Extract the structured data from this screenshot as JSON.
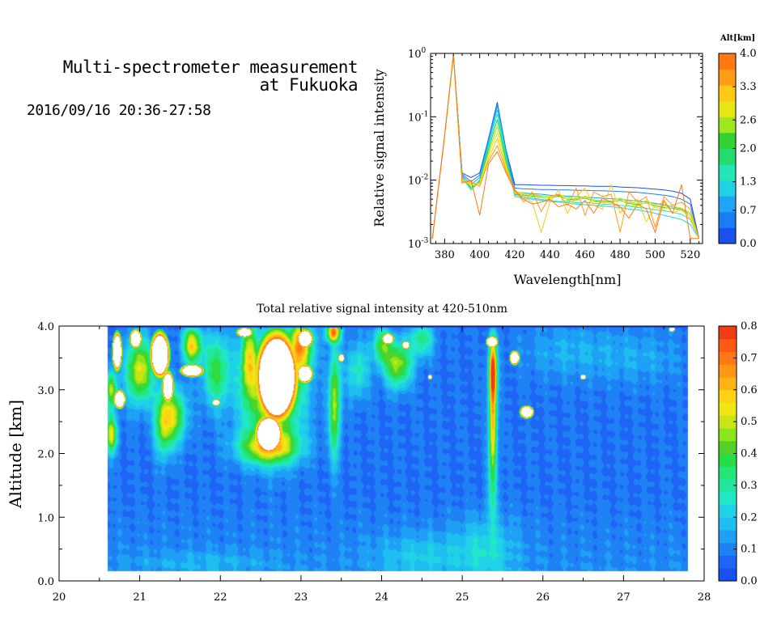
{
  "header": {
    "title_line1": "Multi-spectrometer measurement",
    "title_line2": "at Fukuoka",
    "datetime": "2016/09/16 20:36-27:58"
  },
  "chart_data": [
    {
      "type": "line",
      "xlabel": "Wavelength[nm]",
      "ylabel": "Relative signal intensity",
      "xlim": [
        372,
        527
      ],
      "ylim": [
        0.001,
        1
      ],
      "yscale": "log",
      "x_ticks": [
        "380",
        "400",
        "420",
        "440",
        "460",
        "480",
        "500",
        "520"
      ],
      "y_tick_base": "10",
      "y_tick_exponents": [
        "-3",
        "-2",
        "-1",
        "0"
      ],
      "colorbar": {
        "title": "Alt[km]",
        "ticks": [
          "0.0",
          "0.7",
          "1.3",
          "2.0",
          "2.6",
          "3.3",
          "4.0"
        ],
        "range": [
          0,
          4
        ],
        "colors": [
          "#1a4ff0",
          "#1a7df5",
          "#1ea5f5",
          "#20d2e6",
          "#22e6b4",
          "#22dc6e",
          "#32d232",
          "#a0e61e",
          "#e6e614",
          "#ffc814",
          "#ff9b14",
          "#ff7814"
        ]
      },
      "x": [
        373,
        380,
        385,
        390,
        395,
        400,
        405,
        410,
        415,
        420,
        425,
        430,
        435,
        440,
        445,
        450,
        455,
        460,
        465,
        470,
        475,
        480,
        485,
        490,
        495,
        500,
        505,
        510,
        515,
        520,
        525
      ],
      "series": [
        {
          "color": "#1a4ff0",
          "values": [
            0.0012,
            0.05,
            0.95,
            0.013,
            0.011,
            0.013,
            0.045,
            0.17,
            0.03,
            0.0085,
            0.0085,
            0.0084,
            0.0083,
            0.0083,
            0.0082,
            0.0082,
            0.0081,
            0.0081,
            0.008,
            0.008,
            0.008,
            0.0078,
            0.0077,
            0.0076,
            0.0074,
            0.0072,
            0.007,
            0.0067,
            0.0062,
            0.005,
            0.0012
          ]
        },
        {
          "color": "#1a7df5",
          "values": [
            0.0012,
            0.05,
            0.95,
            0.0125,
            0.0095,
            0.012,
            0.043,
            0.16,
            0.029,
            0.0075,
            0.0073,
            0.0072,
            0.0071,
            0.0071,
            0.007,
            0.007,
            0.0069,
            0.0069,
            0.0068,
            0.0068,
            0.0067,
            0.0066,
            0.0065,
            0.0064,
            0.0062,
            0.006,
            0.0058,
            0.0055,
            0.005,
            0.0042,
            0.0012
          ]
        },
        {
          "color": "#1ea5f5",
          "values": [
            0.0012,
            0.05,
            0.95,
            0.012,
            0.0085,
            0.011,
            0.04,
            0.15,
            0.027,
            0.0065,
            0.0063,
            0.0061,
            0.006,
            0.0058,
            0.0057,
            0.0056,
            0.0055,
            0.0054,
            0.0053,
            0.0052,
            0.0051,
            0.005,
            0.0048,
            0.0047,
            0.0045,
            0.0043,
            0.0041,
            0.0038,
            0.0035,
            0.003,
            0.0012
          ]
        },
        {
          "color": "#20d2e6",
          "values": [
            0.0012,
            0.05,
            0.95,
            0.0115,
            0.0075,
            0.01,
            0.037,
            0.13,
            0.025,
            0.0055,
            0.0052,
            0.005,
            0.0048,
            0.0046,
            0.0045,
            0.0044,
            0.0042,
            0.0041,
            0.004,
            0.0039,
            0.0038,
            0.0037,
            0.0035,
            0.0034,
            0.0032,
            0.003,
            0.0028,
            0.0026,
            0.0024,
            0.002,
            0.0012
          ]
        },
        {
          "color": "#22e6b4",
          "values": [
            0.0012,
            0.05,
            0.95,
            0.011,
            0.007,
            0.0095,
            0.033,
            0.11,
            0.022,
            0.0058,
            0.0055,
            0.0052,
            0.005,
            0.0048,
            0.0046,
            0.0047,
            0.0044,
            0.0045,
            0.0043,
            0.0042,
            0.0041,
            0.004,
            0.0039,
            0.0037,
            0.0036,
            0.0034,
            0.0033,
            0.0031,
            0.0029,
            0.0024,
            0.0012
          ]
        },
        {
          "color": "#32d232",
          "values": [
            0.0012,
            0.05,
            0.95,
            0.011,
            0.0075,
            0.0095,
            0.03,
            0.09,
            0.02,
            0.006,
            0.0058,
            0.0056,
            0.0054,
            0.0052,
            0.0056,
            0.005,
            0.0049,
            0.0052,
            0.0047,
            0.0046,
            0.0045,
            0.0048,
            0.0043,
            0.0041,
            0.0044,
            0.0039,
            0.0037,
            0.0036,
            0.0034,
            0.0028,
            0.0012
          ]
        },
        {
          "color": "#a0e61e",
          "values": [
            0.0012,
            0.05,
            0.95,
            0.0105,
            0.008,
            0.009,
            0.027,
            0.07,
            0.018,
            0.0062,
            0.006,
            0.0059,
            0.0057,
            0.0055,
            0.006,
            0.0053,
            0.0051,
            0.0056,
            0.0049,
            0.0048,
            0.0047,
            0.0052,
            0.0045,
            0.0043,
            0.0047,
            0.0041,
            0.0039,
            0.0038,
            0.0036,
            0.003,
            0.0012
          ]
        },
        {
          "color": "#e6e614",
          "values": [
            0.0012,
            0.05,
            0.95,
            0.0105,
            0.0085,
            0.009,
            0.025,
            0.055,
            0.016,
            0.0065,
            0.0062,
            0.0058,
            0.0055,
            0.0052,
            0.006,
            0.0049,
            0.0047,
            0.0055,
            0.0046,
            0.0044,
            0.0043,
            0.005,
            0.004,
            0.0039,
            0.0045,
            0.0037,
            0.0035,
            0.0041,
            0.0033,
            0.0028,
            0.0012
          ]
        },
        {
          "color": "#ffc814",
          "values": [
            0.0012,
            0.05,
            0.95,
            0.01,
            0.009,
            0.0085,
            0.022,
            0.045,
            0.015,
            0.007,
            0.0055,
            0.0045,
            0.0015,
            0.0045,
            0.007,
            0.003,
            0.0055,
            0.0075,
            0.004,
            0.0035,
            0.0085,
            0.003,
            0.0045,
            0.005,
            0.0022,
            0.004,
            0.0045,
            0.003,
            0.0035,
            0.0025,
            0.0012
          ]
        },
        {
          "color": "#ff9b14",
          "values": [
            0.0012,
            0.05,
            0.95,
            0.0095,
            0.0095,
            0.008,
            0.02,
            0.035,
            0.014,
            0.0072,
            0.0045,
            0.0065,
            0.0032,
            0.0055,
            0.006,
            0.004,
            0.0075,
            0.0028,
            0.0065,
            0.0055,
            0.006,
            0.0015,
            0.0065,
            0.0045,
            0.0055,
            0.0018,
            0.0055,
            0.004,
            0.0045,
            0.0035,
            0.0012
          ]
        },
        {
          "color": "#ff7814",
          "values": [
            0.0012,
            0.05,
            0.95,
            0.009,
            0.01,
            0.0028,
            0.018,
            0.028,
            0.013,
            0.0068,
            0.005,
            0.0042,
            0.0045,
            0.005,
            0.0038,
            0.0042,
            0.0035,
            0.0048,
            0.003,
            0.0052,
            0.0045,
            0.0038,
            0.0025,
            0.0042,
            0.0035,
            0.0015,
            0.0048,
            0.003,
            0.0085,
            0.0012,
            0.0012
          ]
        }
      ]
    },
    {
      "type": "heatmap",
      "title": "Total relative signal intensity at 420-510nm",
      "ylabel": "Altitude [km]",
      "xlim": [
        20,
        28
      ],
      "ylim": [
        0,
        4
      ],
      "data_x_range": [
        20.6,
        27.8
      ],
      "data_y_range": [
        0.15,
        4.0
      ],
      "x_ticks": [
        "20",
        "21",
        "22",
        "23",
        "24",
        "25",
        "26",
        "27",
        "28"
      ],
      "y_ticks": [
        "0.0",
        "1.0",
        "2.0",
        "3.0",
        "4.0"
      ],
      "colorbar": {
        "ticks": [
          "0.0",
          "0.1",
          "0.2",
          "0.3",
          "0.4",
          "0.5",
          "0.6",
          "0.7",
          "0.8"
        ],
        "range": [
          0,
          0.8
        ],
        "colors": [
          "#1a4ff0",
          "#1e64f5",
          "#1e82f5",
          "#1ea0f5",
          "#1ebef0",
          "#20d2e6",
          "#22e6c8",
          "#22e6a0",
          "#22e678",
          "#28dc46",
          "#50d228",
          "#8ce61e",
          "#c8e614",
          "#f0e614",
          "#ffd214",
          "#ffb414",
          "#ff9614",
          "#ff7814",
          "#ff5a14",
          "#f03c14"
        ]
      },
      "background_level": 0.08,
      "features": [
        {
          "x": 20.65,
          "y": 2.3,
          "sx": 0.05,
          "sy": 0.2,
          "amp": 0.45
        },
        {
          "x": 20.65,
          "y": 3.0,
          "sx": 0.05,
          "sy": 0.2,
          "amp": 0.4
        },
        {
          "x": 21.0,
          "y": 3.3,
          "sx": 0.12,
          "sy": 0.35,
          "amp": 0.45
        },
        {
          "x": 21.3,
          "y": 2.5,
          "sx": 0.08,
          "sy": 0.35,
          "amp": 0.4
        },
        {
          "x": 21.45,
          "y": 2.6,
          "sx": 0.1,
          "sy": 0.3,
          "amp": 0.32
        },
        {
          "x": 21.65,
          "y": 3.7,
          "sx": 0.08,
          "sy": 0.2,
          "amp": 0.5
        },
        {
          "x": 21.95,
          "y": 3.3,
          "sx": 0.12,
          "sy": 0.4,
          "amp": 0.3
        },
        {
          "x": 22.35,
          "y": 3.5,
          "sx": 0.06,
          "sy": 0.4,
          "amp": 0.35
        },
        {
          "x": 22.6,
          "y": 2.1,
          "sx": 0.25,
          "sy": 0.18,
          "amp": 0.45
        },
        {
          "x": 22.65,
          "y": 3.0,
          "sx": 0.25,
          "sy": 0.6,
          "amp": 0.5
        },
        {
          "x": 23.0,
          "y": 3.7,
          "sx": 0.1,
          "sy": 0.3,
          "amp": 0.5
        },
        {
          "x": 23.4,
          "y": 3.9,
          "sx": 0.06,
          "sy": 0.1,
          "amp": 0.6
        },
        {
          "x": 23.42,
          "y": 2.8,
          "sx": 0.05,
          "sy": 0.6,
          "amp": 0.4
        },
        {
          "x": 23.7,
          "y": 3.3,
          "sx": 0.1,
          "sy": 0.3,
          "amp": 0.2
        },
        {
          "x": 24.0,
          "y": 3.7,
          "sx": 0.08,
          "sy": 0.2,
          "amp": 0.3
        },
        {
          "x": 24.2,
          "y": 3.4,
          "sx": 0.12,
          "sy": 0.25,
          "amp": 0.4
        },
        {
          "x": 24.5,
          "y": 3.8,
          "sx": 0.1,
          "sy": 0.2,
          "amp": 0.25
        },
        {
          "x": 25.38,
          "y": 3.3,
          "sx": 0.035,
          "sy": 0.35,
          "amp": 0.7
        },
        {
          "x": 25.38,
          "y": 2.4,
          "sx": 0.035,
          "sy": 0.5,
          "amp": 0.5
        },
        {
          "x": 25.38,
          "y": 1.4,
          "sx": 0.05,
          "sy": 0.4,
          "amp": 0.15
        },
        {
          "x": 24.5,
          "y": 0.4,
          "sx": 0.4,
          "sy": 0.25,
          "amp": 0.1
        },
        {
          "x": 25.3,
          "y": 0.5,
          "sx": 0.25,
          "sy": 0.35,
          "amp": 0.13
        },
        {
          "x": 21.8,
          "y": 0.3,
          "sx": 0.6,
          "sy": 0.12,
          "amp": 0.06
        },
        {
          "x": 26.3,
          "y": 3.6,
          "sx": 0.4,
          "sy": 0.3,
          "amp": 0.08
        },
        {
          "x": 27.2,
          "y": 3.5,
          "sx": 0.4,
          "sy": 0.3,
          "amp": 0.07
        }
      ],
      "masks": [
        {
          "x": 22.7,
          "y": 3.2,
          "rx": 0.22,
          "ry": 0.6
        },
        {
          "x": 22.6,
          "y": 2.3,
          "rx": 0.14,
          "ry": 0.25
        },
        {
          "x": 21.25,
          "y": 3.55,
          "rx": 0.1,
          "ry": 0.3
        },
        {
          "x": 21.35,
          "y": 3.05,
          "rx": 0.06,
          "ry": 0.2
        },
        {
          "x": 20.72,
          "y": 3.6,
          "rx": 0.05,
          "ry": 0.25
        },
        {
          "x": 20.75,
          "y": 2.85,
          "rx": 0.06,
          "ry": 0.12
        },
        {
          "x": 20.95,
          "y": 3.8,
          "rx": 0.06,
          "ry": 0.12
        },
        {
          "x": 21.65,
          "y": 3.3,
          "rx": 0.12,
          "ry": 0.08
        },
        {
          "x": 22.3,
          "y": 3.9,
          "rx": 0.08,
          "ry": 0.06
        },
        {
          "x": 23.05,
          "y": 3.25,
          "rx": 0.08,
          "ry": 0.12
        },
        {
          "x": 23.05,
          "y": 3.8,
          "rx": 0.08,
          "ry": 0.12
        },
        {
          "x": 24.08,
          "y": 3.8,
          "rx": 0.06,
          "ry": 0.07
        },
        {
          "x": 24.3,
          "y": 3.7,
          "rx": 0.04,
          "ry": 0.05
        },
        {
          "x": 25.65,
          "y": 3.5,
          "rx": 0.05,
          "ry": 0.09
        },
        {
          "x": 25.37,
          "y": 3.75,
          "rx": 0.06,
          "ry": 0.07
        },
        {
          "x": 25.8,
          "y": 2.65,
          "rx": 0.07,
          "ry": 0.08
        },
        {
          "x": 21.95,
          "y": 2.8,
          "rx": 0.04,
          "ry": 0.04
        },
        {
          "x": 24.6,
          "y": 3.2,
          "rx": 0.02,
          "ry": 0.03
        },
        {
          "x": 23.5,
          "y": 3.5,
          "rx": 0.03,
          "ry": 0.05
        },
        {
          "x": 26.5,
          "y": 3.2,
          "rx": 0.03,
          "ry": 0.03
        },
        {
          "x": 27.6,
          "y": 3.95,
          "rx": 0.03,
          "ry": 0.03
        }
      ]
    }
  ]
}
